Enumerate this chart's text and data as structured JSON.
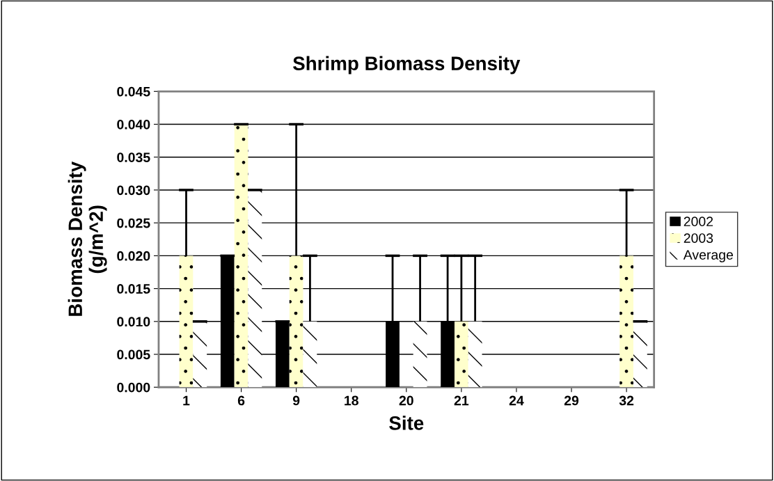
{
  "chart_data": {
    "type": "bar",
    "title": "Shrimp Biomass Density",
    "xlabel": "Site",
    "ylabel": "Biomass Density\n(g/m^2)",
    "categories": [
      "1",
      "6",
      "9",
      "18",
      "20",
      "21",
      "24",
      "29",
      "32"
    ],
    "series": [
      {
        "name": "2002",
        "color": "#000000",
        "values": [
          0,
          0.02,
          0.01,
          0,
          0.01,
          0.01,
          0,
          0,
          0
        ],
        "errors": [
          null,
          [
            0.02,
            0.02
          ],
          [
            0.01,
            0.01
          ],
          null,
          [
            0.01,
            0.02
          ],
          [
            0.01,
            0.02
          ],
          null,
          null,
          null
        ]
      },
      {
        "name": "2003",
        "color": "#ffffcc",
        "values": [
          0.02,
          0.04,
          0.02,
          0,
          0,
          0.01,
          0,
          0,
          0.02
        ],
        "errors": [
          [
            0.02,
            0.03
          ],
          [
            0.04,
            0.04
          ],
          [
            0.02,
            0.04
          ],
          null,
          null,
          [
            0.01,
            0.02
          ],
          null,
          null,
          [
            0.02,
            0.03
          ]
        ]
      },
      {
        "name": "Average",
        "color": "#ffffff",
        "values": [
          0.01,
          0.03,
          0.01,
          0,
          0.01,
          0.01,
          0,
          0,
          0.01
        ],
        "errors": [
          [
            0.01,
            0.01
          ],
          [
            0.03,
            0.03
          ],
          [
            0.01,
            0.02
          ],
          null,
          [
            0.01,
            0.02
          ],
          [
            0.01,
            0.02
          ],
          null,
          null,
          [
            0.01,
            0.01
          ]
        ]
      }
    ],
    "ylim": [
      0,
      0.045
    ],
    "yticks": [
      {
        "value": 0,
        "label": "0.000"
      },
      {
        "value": 0.005,
        "label": "0.005"
      },
      {
        "value": 0.01,
        "label": "0.010"
      },
      {
        "value": 0.015,
        "label": "0.015"
      },
      {
        "value": 0.02,
        "label": "0.020"
      },
      {
        "value": 0.025,
        "label": "0.025"
      },
      {
        "value": 0.03,
        "label": "0.030"
      },
      {
        "value": 0.035,
        "label": "0.035"
      },
      {
        "value": 0.04,
        "label": "0.040"
      },
      {
        "value": 0.045,
        "label": "0.045"
      }
    ],
    "grid": "y",
    "legend": "right"
  }
}
